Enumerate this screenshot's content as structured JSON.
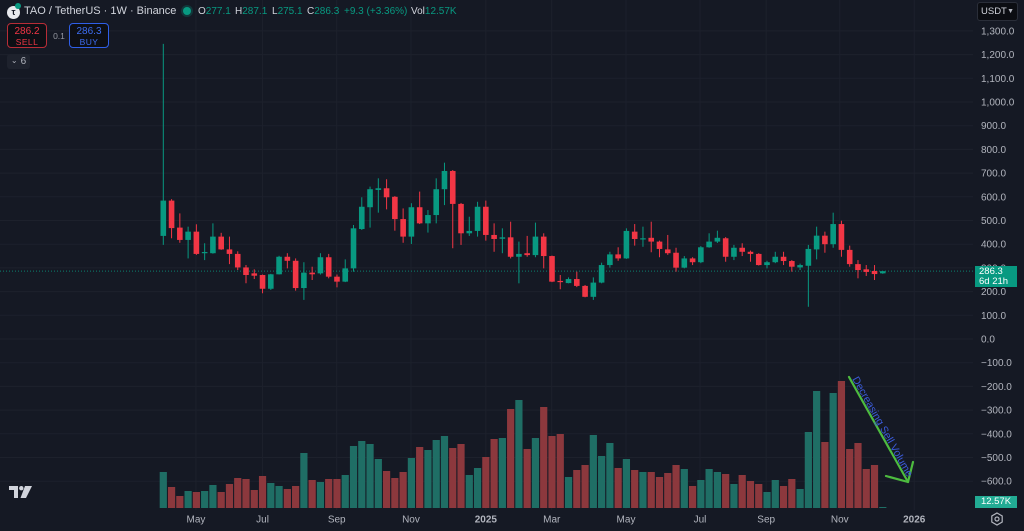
{
  "header": {
    "symbol_title": "TAO / TetherUS · 1W · Binance",
    "logo_glyph": "τ",
    "ohlc": {
      "o_label": "O",
      "o": "277.1",
      "h_label": "H",
      "h": "287.1",
      "l_label": "L",
      "l": "275.1",
      "c_label": "C",
      "c": "286.3",
      "change": "+9.3 (+3.36%)",
      "vol_label": "Vol",
      "vol": "12.57K"
    }
  },
  "trade": {
    "sell_price": "286.2",
    "sell_label": "SELL",
    "spread": "0.1",
    "buy_price": "286.3",
    "buy_label": "BUY"
  },
  "indicators_toggle": {
    "chevron": "⌄",
    "count": "6"
  },
  "currency_select": {
    "value": "USDT",
    "caret": "▼"
  },
  "price_tag": {
    "price": "286.3",
    "countdown": "6d 21h"
  },
  "volume_tag": "12.57K",
  "colors": {
    "background": "#151924",
    "grid": "#1d212c",
    "axis_text": "#b2b5be",
    "up": "#089981",
    "down": "#f23645",
    "volume_up": "#1f6e65",
    "volume_down": "#8c383d",
    "annotation_arrow": "#4dbb3f",
    "annotation_text": "#3b5bd9"
  },
  "annotation": {
    "text": "Decreasing Sell Volume"
  },
  "chart_data": {
    "type": "candlestick",
    "title": "TAO / TetherUS · 1W · Binance",
    "interval": "1W",
    "xlabel": "",
    "ylabel": "USDT",
    "ylim": [
      -650,
      1340
    ],
    "grid": true,
    "y_ticks": [
      1300,
      1200,
      1100,
      1000,
      900,
      800,
      700,
      600,
      500,
      400,
      300,
      200,
      100,
      0,
      -100,
      -200,
      -300,
      -400,
      -500,
      -600
    ],
    "x_ticks": [
      {
        "label": "May",
        "at": 3.95
      },
      {
        "label": "Jul",
        "at": 12.0
      },
      {
        "label": "Sep",
        "at": 20.97
      },
      {
        "label": "Nov",
        "at": 29.95
      },
      {
        "label": "2025",
        "at": 39.0,
        "bold": true
      },
      {
        "label": "Mar",
        "at": 46.97
      },
      {
        "label": "May",
        "at": 55.95
      },
      {
        "label": "Jul",
        "at": 64.9
      },
      {
        "label": "Sep",
        "at": 72.9
      },
      {
        "label": "Nov",
        "at": 81.8
      },
      {
        "label": "2026",
        "at": 90.8,
        "bold": true
      }
    ],
    "candle_fields": [
      "open",
      "high",
      "low",
      "close"
    ],
    "candles": [
      [
        435,
        1245,
        397,
        584
      ],
      [
        584,
        590,
        425,
        468
      ],
      [
        470,
        530,
        406,
        418
      ],
      [
        418,
        474,
        340,
        453
      ],
      [
        453,
        484,
        355,
        359
      ],
      [
        362,
        404,
        333,
        367
      ],
      [
        362,
        488,
        360,
        432
      ],
      [
        432,
        448,
        376,
        378
      ],
      [
        378,
        432,
        316,
        359
      ],
      [
        359,
        370,
        291,
        302
      ],
      [
        302,
        312,
        235,
        270
      ],
      [
        277,
        294,
        253,
        267
      ],
      [
        270,
        272,
        193,
        212
      ],
      [
        212,
        275,
        207,
        273
      ],
      [
        273,
        351,
        272,
        347
      ],
      [
        347,
        362,
        298,
        330
      ],
      [
        330,
        340,
        204,
        215
      ],
      [
        215,
        324,
        165,
        280
      ],
      [
        280,
        305,
        249,
        273
      ],
      [
        277,
        362,
        272,
        345
      ],
      [
        345,
        359,
        256,
        263
      ],
      [
        263,
        272,
        218,
        242
      ],
      [
        242,
        336,
        240,
        298
      ],
      [
        298,
        481,
        284,
        467
      ],
      [
        464,
        598,
        460,
        558
      ],
      [
        556,
        643,
        470,
        632
      ],
      [
        629,
        678,
        533,
        636
      ],
      [
        636,
        674,
        547,
        598
      ],
      [
        600,
        603,
        457,
        506
      ],
      [
        506,
        551,
        406,
        432
      ],
      [
        432,
        573,
        401,
        556
      ],
      [
        556,
        622,
        485,
        488
      ],
      [
        488,
        544,
        449,
        523
      ],
      [
        523,
        678,
        488,
        632
      ],
      [
        632,
        744,
        565,
        709
      ],
      [
        709,
        713,
        383,
        570
      ],
      [
        570,
        574,
        397,
        446
      ],
      [
        446,
        516,
        435,
        456
      ],
      [
        456,
        579,
        432,
        558
      ],
      [
        558,
        584,
        415,
        439
      ],
      [
        439,
        488,
        368,
        422
      ],
      [
        423,
        467,
        362,
        429
      ],
      [
        429,
        495,
        340,
        347
      ],
      [
        347,
        411,
        235,
        359
      ],
      [
        362,
        435,
        347,
        354
      ],
      [
        354,
        491,
        345,
        432
      ],
      [
        432,
        446,
        298,
        350
      ],
      [
        350,
        352,
        240,
        242
      ],
      [
        245,
        270,
        210,
        242
      ],
      [
        236,
        260,
        235,
        253
      ],
      [
        253,
        284,
        219,
        224
      ],
      [
        224,
        228,
        176,
        178
      ],
      [
        178,
        260,
        165,
        238
      ],
      [
        238,
        322,
        235,
        312
      ],
      [
        312,
        368,
        301,
        357
      ],
      [
        357,
        387,
        330,
        340
      ],
      [
        340,
        467,
        338,
        456
      ],
      [
        453,
        485,
        394,
        422
      ],
      [
        421,
        474,
        389,
        425
      ],
      [
        427,
        495,
        366,
        411
      ],
      [
        411,
        415,
        345,
        380
      ],
      [
        378,
        439,
        355,
        362
      ],
      [
        364,
        385,
        284,
        301
      ],
      [
        301,
        350,
        298,
        340
      ],
      [
        340,
        345,
        312,
        324
      ],
      [
        324,
        392,
        320,
        387
      ],
      [
        387,
        446,
        385,
        411
      ],
      [
        411,
        457,
        405,
        427
      ],
      [
        425,
        430,
        326,
        347
      ],
      [
        347,
        397,
        333,
        385
      ],
      [
        385,
        404,
        350,
        368
      ],
      [
        368,
        373,
        326,
        359
      ],
      [
        359,
        362,
        310,
        312
      ],
      [
        312,
        330,
        298,
        324
      ],
      [
        324,
        368,
        320,
        347
      ],
      [
        347,
        368,
        312,
        329
      ],
      [
        329,
        333,
        284,
        305
      ],
      [
        302,
        318,
        291,
        312
      ],
      [
        309,
        397,
        136,
        380
      ],
      [
        378,
        474,
        336,
        436
      ],
      [
        436,
        453,
        364,
        400
      ],
      [
        400,
        533,
        385,
        485
      ],
      [
        485,
        499,
        347,
        376
      ],
      [
        376,
        394,
        305,
        316
      ],
      [
        316,
        333,
        256,
        291
      ],
      [
        294,
        312,
        266,
        283
      ],
      [
        287,
        312,
        249,
        274
      ],
      [
        277.1,
        287.1,
        275.1,
        286.3
      ]
    ],
    "volume_relative": [
      36,
      21,
      12,
      17,
      16,
      17,
      23,
      16,
      24,
      30,
      29,
      18,
      32,
      25,
      22,
      19,
      22,
      55,
      28,
      26,
      29,
      29,
      33,
      62,
      67,
      64,
      49,
      37,
      30,
      36,
      50,
      61,
      58,
      68,
      72,
      60,
      64,
      33,
      40,
      51,
      69,
      70,
      99,
      108,
      59,
      70,
      101,
      72,
      74,
      31,
      38,
      43,
      73,
      52,
      65,
      40,
      49,
      38,
      36,
      36,
      31,
      35,
      43,
      39,
      22,
      28,
      39,
      36,
      34,
      24,
      33,
      27,
      24,
      16,
      28,
      22,
      29,
      19,
      76,
      117,
      66,
      115,
      127,
      59,
      65,
      39,
      43,
      1
    ],
    "last": {
      "open": 277.1,
      "high": 287.1,
      "low": 275.1,
      "close": 286.3,
      "change": 9.3,
      "change_pct": 3.36,
      "volume": "12.57K"
    },
    "current_price_line": 286.3,
    "annotations": [
      {
        "type": "arrow",
        "text": "Decreasing Sell Volume",
        "over": "volume, last 5 weeks"
      }
    ]
  }
}
